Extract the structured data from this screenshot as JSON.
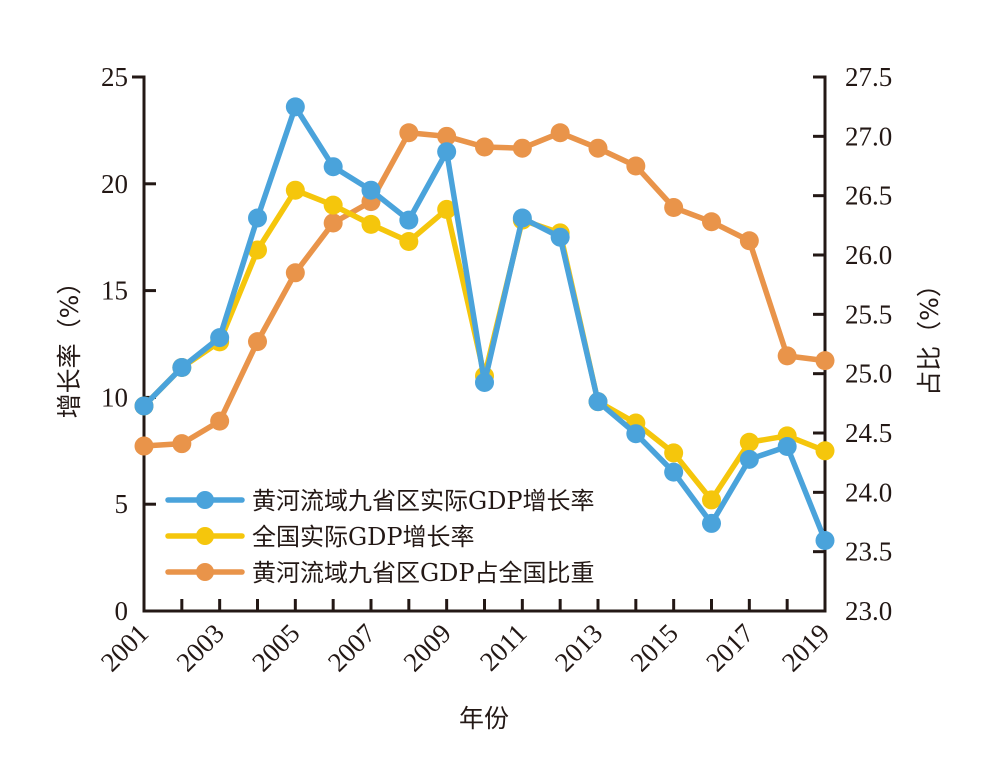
{
  "chart_data": {
    "type": "line",
    "title": "",
    "xlabel": "年份",
    "ylabel": "增长率（%）",
    "ylabel_right": "占比（%）",
    "x": [
      2001,
      2002,
      2003,
      2004,
      2005,
      2006,
      2007,
      2008,
      2009,
      2010,
      2011,
      2012,
      2013,
      2014,
      2015,
      2016,
      2017,
      2018,
      2019
    ],
    "x_tick_labels": [
      "2001",
      "2003",
      "2005",
      "2007",
      "2009",
      "2011",
      "2013",
      "2015",
      "2017",
      "2019"
    ],
    "ylim": [
      0,
      25
    ],
    "y_ticks": [
      "0",
      "5",
      "10",
      "15",
      "20",
      "25"
    ],
    "ylim_right": [
      23.0,
      27.5
    ],
    "y_ticks_right": [
      "23.0",
      "23.5",
      "24.0",
      "24.5",
      "25.0",
      "25.5",
      "26.0",
      "26.5",
      "27.0",
      "27.5"
    ],
    "grid": false,
    "legend_position": "bottom-left",
    "series": [
      {
        "name": "黄河流域九省区实际GDP增长率",
        "axis": "left",
        "color": "#4aa3db",
        "values": [
          9.6,
          11.4,
          12.8,
          18.4,
          23.6,
          20.8,
          19.7,
          18.3,
          21.5,
          10.7,
          18.4,
          17.5,
          9.8,
          8.3,
          6.5,
          4.1,
          7.1,
          7.7,
          3.3
        ]
      },
      {
        "name": "全国实际GDP增长率",
        "axis": "left",
        "color": "#f5c60c",
        "values": [
          9.6,
          11.4,
          12.6,
          16.9,
          19.7,
          19.0,
          18.1,
          17.3,
          18.8,
          11.0,
          18.3,
          17.7,
          9.8,
          8.8,
          7.4,
          5.2,
          7.9,
          8.2,
          7.5
        ]
      },
      {
        "name": "黄河流域九省区GDP占全国比重",
        "axis": "right",
        "color": "#e9944a",
        "values": [
          24.39,
          24.41,
          24.6,
          25.27,
          25.85,
          26.27,
          26.45,
          27.03,
          27.0,
          26.91,
          26.9,
          27.03,
          26.9,
          26.75,
          26.4,
          26.28,
          26.12,
          25.15,
          25.11
        ]
      }
    ],
    "draw_order": [
      2,
      1,
      0
    ]
  }
}
